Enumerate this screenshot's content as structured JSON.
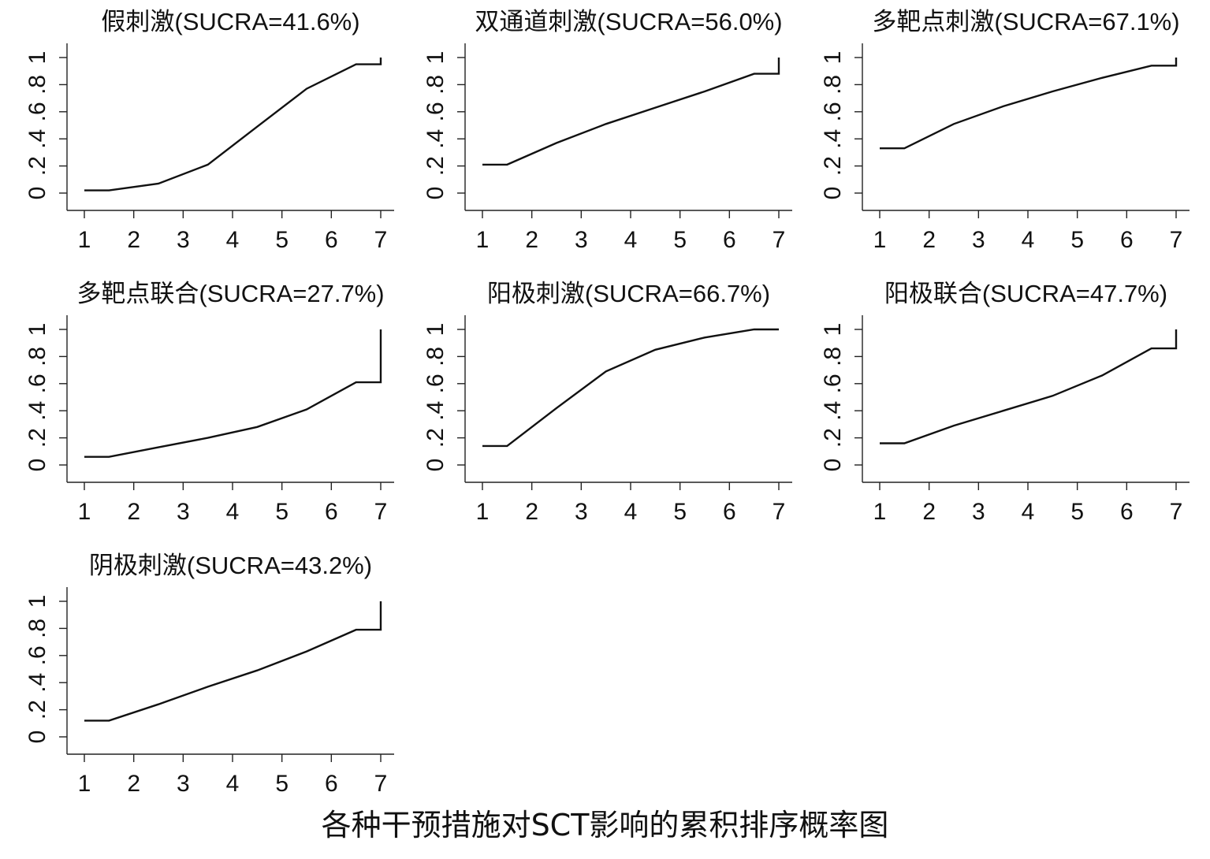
{
  "figure": {
    "caption": "各种干预措施对SCT影响的累积排序概率图"
  },
  "chart_data": [
    {
      "type": "line",
      "title": "假刺激(SUCRA=41.6%)",
      "x": [
        1,
        1.5,
        2.5,
        3.5,
        4.5,
        5.5,
        6.5,
        7,
        7
      ],
      "y": [
        0.02,
        0.02,
        0.07,
        0.21,
        0.49,
        0.77,
        0.95,
        0.95,
        1.0
      ],
      "xticks": [
        "1",
        "2",
        "3",
        "4",
        "5",
        "6",
        "7"
      ],
      "yticks": [
        "0",
        ".2",
        ".4",
        ".6",
        ".8",
        "1"
      ],
      "xlim": [
        1,
        7
      ],
      "ylim": [
        0,
        1
      ]
    },
    {
      "type": "line",
      "title": "双通道刺激(SUCRA=56.0%)",
      "x": [
        1,
        1.5,
        2.5,
        3.5,
        4.5,
        5.5,
        6.5,
        7,
        7
      ],
      "y": [
        0.21,
        0.21,
        0.37,
        0.51,
        0.63,
        0.75,
        0.88,
        0.88,
        1.0
      ],
      "xticks": [
        "1",
        "2",
        "3",
        "4",
        "5",
        "6",
        "7"
      ],
      "yticks": [
        "0",
        ".2",
        ".4",
        ".6",
        ".8",
        "1"
      ],
      "xlim": [
        1,
        7
      ],
      "ylim": [
        0,
        1
      ]
    },
    {
      "type": "line",
      "title": "多靶点刺激(SUCRA=67.1%)",
      "x": [
        1,
        1.5,
        2.5,
        3.5,
        4.5,
        5.5,
        6.5,
        7,
        7
      ],
      "y": [
        0.33,
        0.33,
        0.51,
        0.64,
        0.75,
        0.85,
        0.94,
        0.94,
        1.0
      ],
      "xticks": [
        "1",
        "2",
        "3",
        "4",
        "5",
        "6",
        "7"
      ],
      "yticks": [
        "0",
        ".2",
        ".4",
        ".6",
        ".8",
        "1"
      ],
      "xlim": [
        1,
        7
      ],
      "ylim": [
        0,
        1
      ]
    },
    {
      "type": "line",
      "title": "多靶点联合(SUCRA=27.7%)",
      "x": [
        1,
        1.5,
        2.5,
        3.5,
        4.5,
        5.5,
        6.5,
        7,
        7
      ],
      "y": [
        0.06,
        0.06,
        0.13,
        0.2,
        0.28,
        0.41,
        0.61,
        0.61,
        1.0
      ],
      "xticks": [
        "1",
        "2",
        "3",
        "4",
        "5",
        "6",
        "7"
      ],
      "yticks": [
        "0",
        ".2",
        ".4",
        ".6",
        ".8",
        "1"
      ],
      "xlim": [
        1,
        7
      ],
      "ylim": [
        0,
        1
      ]
    },
    {
      "type": "line",
      "title": "阳极刺激(SUCRA=66.7%)",
      "x": [
        1,
        1.5,
        2.5,
        3.5,
        4.5,
        5.5,
        6.5,
        7
      ],
      "y": [
        0.14,
        0.14,
        0.42,
        0.69,
        0.85,
        0.94,
        1.0,
        1.0
      ],
      "xticks": [
        "1",
        "2",
        "3",
        "4",
        "5",
        "6",
        "7"
      ],
      "yticks": [
        "0",
        ".2",
        ".4",
        ".6",
        ".8",
        "1"
      ],
      "xlim": [
        1,
        7
      ],
      "ylim": [
        0,
        1
      ]
    },
    {
      "type": "line",
      "title": "阳极联合(SUCRA=47.7%)",
      "x": [
        1,
        1.5,
        2.5,
        3.5,
        4.5,
        5.5,
        6.5,
        7,
        7
      ],
      "y": [
        0.16,
        0.16,
        0.29,
        0.4,
        0.51,
        0.66,
        0.86,
        0.86,
        1.0
      ],
      "xticks": [
        "1",
        "2",
        "3",
        "4",
        "5",
        "6",
        "7"
      ],
      "yticks": [
        "0",
        ".2",
        ".4",
        ".6",
        ".8",
        "1"
      ],
      "xlim": [
        1,
        7
      ],
      "ylim": [
        0,
        1
      ]
    },
    {
      "type": "line",
      "title": "阴极刺激(SUCRA=43.2%)",
      "x": [
        1,
        1.5,
        2.5,
        3.5,
        4.5,
        5.5,
        6.5,
        7,
        7
      ],
      "y": [
        0.12,
        0.12,
        0.24,
        0.37,
        0.49,
        0.63,
        0.79,
        0.79,
        1.0
      ],
      "xticks": [
        "1",
        "2",
        "3",
        "4",
        "5",
        "6",
        "7"
      ],
      "yticks": [
        "0",
        ".2",
        ".4",
        ".6",
        ".8",
        "1"
      ],
      "xlim": [
        1,
        7
      ],
      "ylim": [
        0,
        1
      ]
    }
  ]
}
